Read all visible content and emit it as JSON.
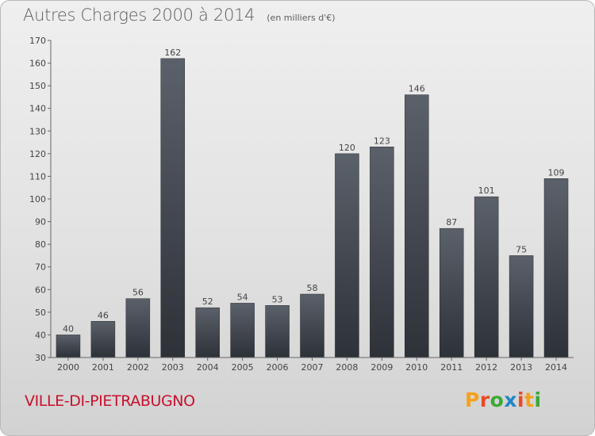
{
  "header": {
    "title": "Autres Charges 2000 à 2014",
    "unit": "(en milliers d'€)"
  },
  "footer": {
    "town": "VILLE-DI-PIETRABUGNO",
    "logo": "Proxiti",
    "logo_colors": [
      "#f6a11a",
      "#e84a24",
      "#3aa935",
      "#1f86c7",
      "#e84a24",
      "#f6a11a",
      "#3aa935"
    ]
  },
  "chart_data": {
    "type": "bar",
    "title": "Autres Charges 2000 à 2014",
    "subtitle": "(en milliers d'€)",
    "xlabel": "",
    "ylabel": "",
    "categories": [
      "2000",
      "2001",
      "2002",
      "2003",
      "2004",
      "2005",
      "2006",
      "2007",
      "2008",
      "2009",
      "2010",
      "2011",
      "2012",
      "2013",
      "2014"
    ],
    "values": [
      40,
      46,
      56,
      162,
      52,
      54,
      53,
      58,
      120,
      123,
      146,
      87,
      101,
      75,
      109
    ],
    "ylim": [
      30,
      170
    ],
    "yticks": [
      30,
      40,
      50,
      60,
      70,
      80,
      90,
      100,
      110,
      120,
      130,
      140,
      150,
      160,
      170
    ],
    "grid": false,
    "data_labels": true,
    "bar_color": "#4a4f56"
  }
}
